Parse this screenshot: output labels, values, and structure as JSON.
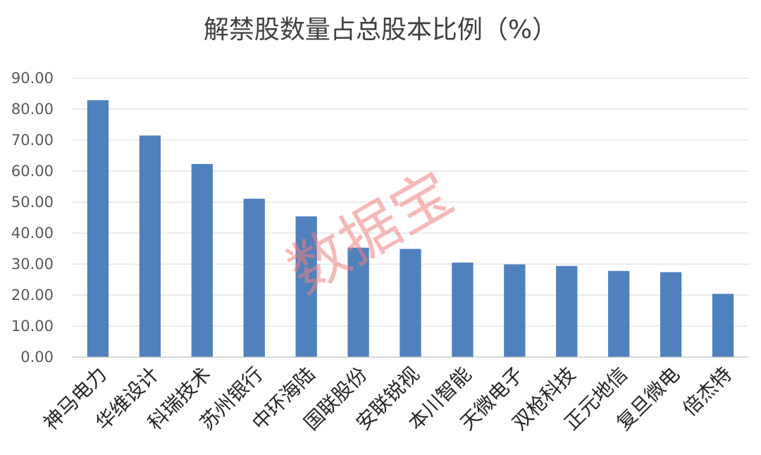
{
  "chart_data": {
    "type": "bar",
    "title": "解禁股数量占总股本比例（%）",
    "xlabel": "",
    "ylabel": "",
    "ylim": [
      0,
      90
    ],
    "yticks": [
      0,
      10,
      20,
      30,
      40,
      50,
      60,
      70,
      80,
      90
    ],
    "ytick_labels": [
      "0.00",
      "10.00",
      "20.00",
      "30.00",
      "40.00",
      "50.00",
      "60.00",
      "70.00",
      "80.00",
      "90.00"
    ],
    "categories": [
      "神马电力",
      "华维设计",
      "科瑞技术",
      "苏州银行",
      "中环海陆",
      "国联股份",
      "安联锐视",
      "本川智能",
      "天微电子",
      "双枪科技",
      "正元地信",
      "复旦微电",
      "倍杰特"
    ],
    "values": [
      82.9,
      71.5,
      62.3,
      51.1,
      45.4,
      35.3,
      34.9,
      30.5,
      29.9,
      29.4,
      27.8,
      27.4,
      20.4
    ],
    "grid": true,
    "legend": "none",
    "bar_color": "#4f81bd"
  },
  "watermark": "数据宝"
}
